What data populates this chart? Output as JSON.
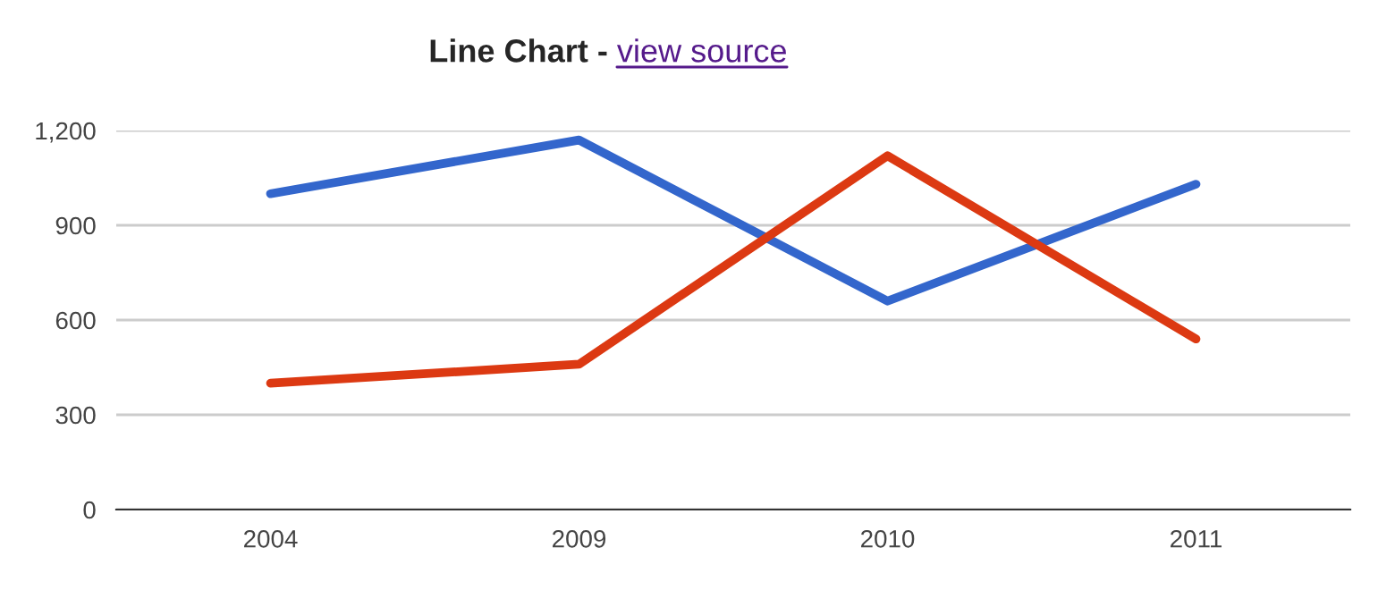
{
  "chart_data": {
    "type": "line",
    "title": "Line Chart -",
    "annotations": [
      "view source"
    ],
    "categories": [
      "2004",
      "2009",
      "2010",
      "2011"
    ],
    "series": [
      {
        "color": "#3366cc",
        "values": [
          1000,
          1170,
          660,
          1030
        ]
      },
      {
        "color": "#dc3912",
        "values": [
          400,
          460,
          1120,
          540
        ]
      }
    ],
    "ylim": [
      0,
      1200
    ],
    "yticks": [
      {
        "value": 0,
        "label": "0"
      },
      {
        "value": 300,
        "label": "300"
      },
      {
        "value": 600,
        "label": "600"
      },
      {
        "value": 900,
        "label": "900"
      },
      {
        "value": 1200,
        "label": "1,200"
      }
    ],
    "grid": "y",
    "line_style": "solid",
    "marker": "none"
  }
}
